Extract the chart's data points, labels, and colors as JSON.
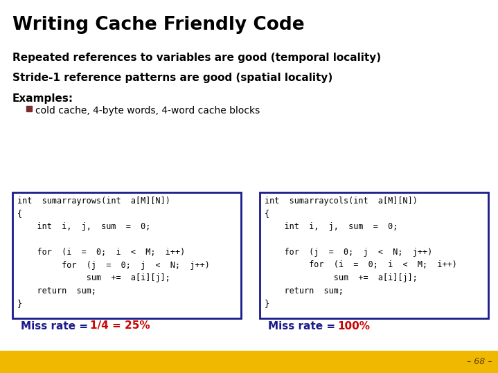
{
  "title": "Writing Cache Friendly Code",
  "bullet1": "Repeated references to variables are good (temporal locality)",
  "bullet2": "Stride-1 reference patterns are good (spatial locality)",
  "bullet3": "Examples:",
  "sub_bullet": "cold cache, 4-byte words, 4-word cache blocks",
  "code_left_lines": [
    "int  sumarrayrows(int  a[M][N])",
    "{",
    "    int  i,  j,  sum  =  0;",
    "",
    "    for  (i  =  0;  i  <  M;  i++)",
    "         for  (j  =  0;  j  <  N;  j++)",
    "              sum  +=  a[i][j];",
    "    return  sum;",
    "}"
  ],
  "code_right_lines": [
    "int  sumarraycols(int  a[M][N])",
    "{",
    "    int  i,  j,  sum  =  0;",
    "",
    "    for  (j  =  0;  j  <  N;  j++)",
    "         for  (i  =  0;  i  <  M;  i++)",
    "              sum  +=  a[i][j];",
    "    return  sum;",
    "}"
  ],
  "miss_left_black": "Miss rate =",
  "miss_left_red": "1/4 = 25%",
  "miss_right_black": "Miss rate =",
  "miss_right_red": "100%",
  "bg_color": "#ffffff",
  "title_color": "#000000",
  "text_color": "#000000",
  "code_color": "#000000",
  "miss_red_color": "#cc0000",
  "miss_black_color": "#1a1a8c",
  "box_border_color": "#1a1a8c",
  "bullet_square_color": "#7B2D2D",
  "footer_bg": "#F0B800",
  "footer_text": "– 68 –",
  "footer_text_color": "#5a4000",
  "fig_w": 7.19,
  "fig_h": 5.39,
  "dpi": 100
}
